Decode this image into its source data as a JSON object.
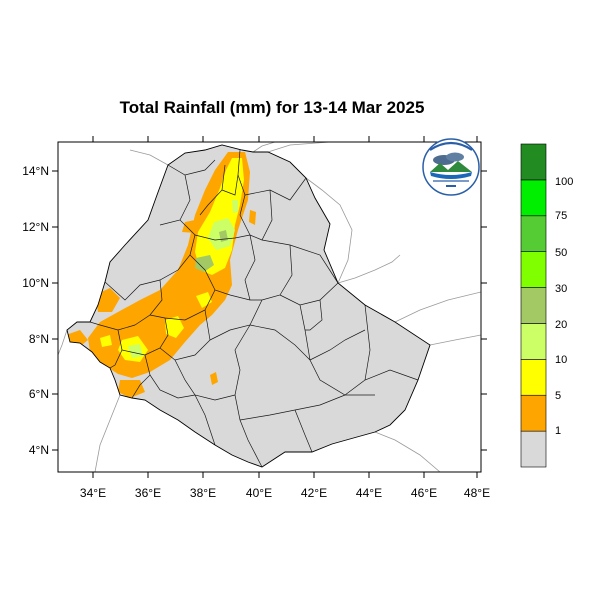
{
  "title": "Total Rainfall (mm) for 13-14 Mar 2025",
  "map": {
    "lon_range": [
      33,
      48
    ],
    "lat_range": [
      3.2,
      15
    ],
    "x_ticks": [
      "34°E",
      "36°E",
      "38°E",
      "40°E",
      "42°E",
      "44°E",
      "46°E",
      "48°E"
    ],
    "y_ticks": [
      "14°N",
      "12°N",
      "10°N",
      "8°N",
      "6°N",
      "4°N"
    ],
    "background_color": "#ffffff",
    "land_color": "#d9d9d9"
  },
  "colorbar": {
    "labels": [
      "100",
      "75",
      "50",
      "30",
      "20",
      "10",
      "5",
      "1"
    ],
    "colors": [
      "#d9d9d9",
      "#ffa500",
      "#ffff00",
      "#ccff66",
      "#a3c965",
      "#7fff00",
      "#55cc33",
      "#00ee00",
      "#228b22"
    ]
  },
  "logo": {
    "icon": "ethiopian-meteorology-institute-logo"
  }
}
